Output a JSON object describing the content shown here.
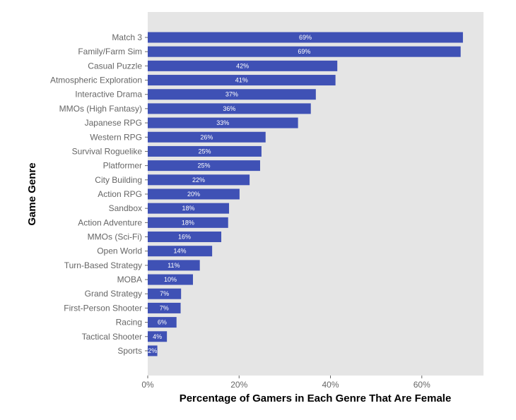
{
  "chart_data": {
    "type": "bar",
    "orientation": "horizontal",
    "xlabel": "Percentage of Gamers in Each Genre That Are Female",
    "ylabel": "Game Genre",
    "xlim": [
      0,
      0.735
    ],
    "x_ticks": [
      {
        "value": 0,
        "label": "0%"
      },
      {
        "value": 0.2,
        "label": "20%"
      },
      {
        "value": 0.4,
        "label": "40%"
      },
      {
        "value": 0.6,
        "label": "60%"
      }
    ],
    "grid": false,
    "panel_background": "#e5e5e5",
    "bar_color": "#3f51b5",
    "categories": [
      "Match 3",
      "Family/Farm Sim",
      "Casual Puzzle",
      "Atmospheric Exploration",
      "Interactive Drama",
      "MMOs (High Fantasy)",
      "Japanese RPG",
      "Western RPG",
      "Survival Roguelike",
      "Platformer",
      "City Building",
      "Action RPG",
      "Sandbox",
      "Action Adventure",
      "MMOs (Sci-Fi)",
      "Open World",
      "Turn-Based Strategy",
      "MOBA",
      "Grand Strategy",
      "First-Person Shooter",
      "Racing",
      "Tactical Shooter",
      "Sports"
    ],
    "values": [
      0.69,
      0.685,
      0.415,
      0.411,
      0.368,
      0.357,
      0.329,
      0.258,
      0.249,
      0.246,
      0.223,
      0.201,
      0.178,
      0.176,
      0.161,
      0.141,
      0.114,
      0.099,
      0.073,
      0.072,
      0.063,
      0.042,
      0.021
    ],
    "data_labels": [
      "69%",
      "69%",
      "42%",
      "41%",
      "37%",
      "36%",
      "33%",
      "26%",
      "25%",
      "25%",
      "22%",
      "20%",
      "18%",
      "18%",
      "16%",
      "14%",
      "11%",
      "10%",
      "7%",
      "7%",
      "6%",
      "4%",
      "2%"
    ]
  }
}
